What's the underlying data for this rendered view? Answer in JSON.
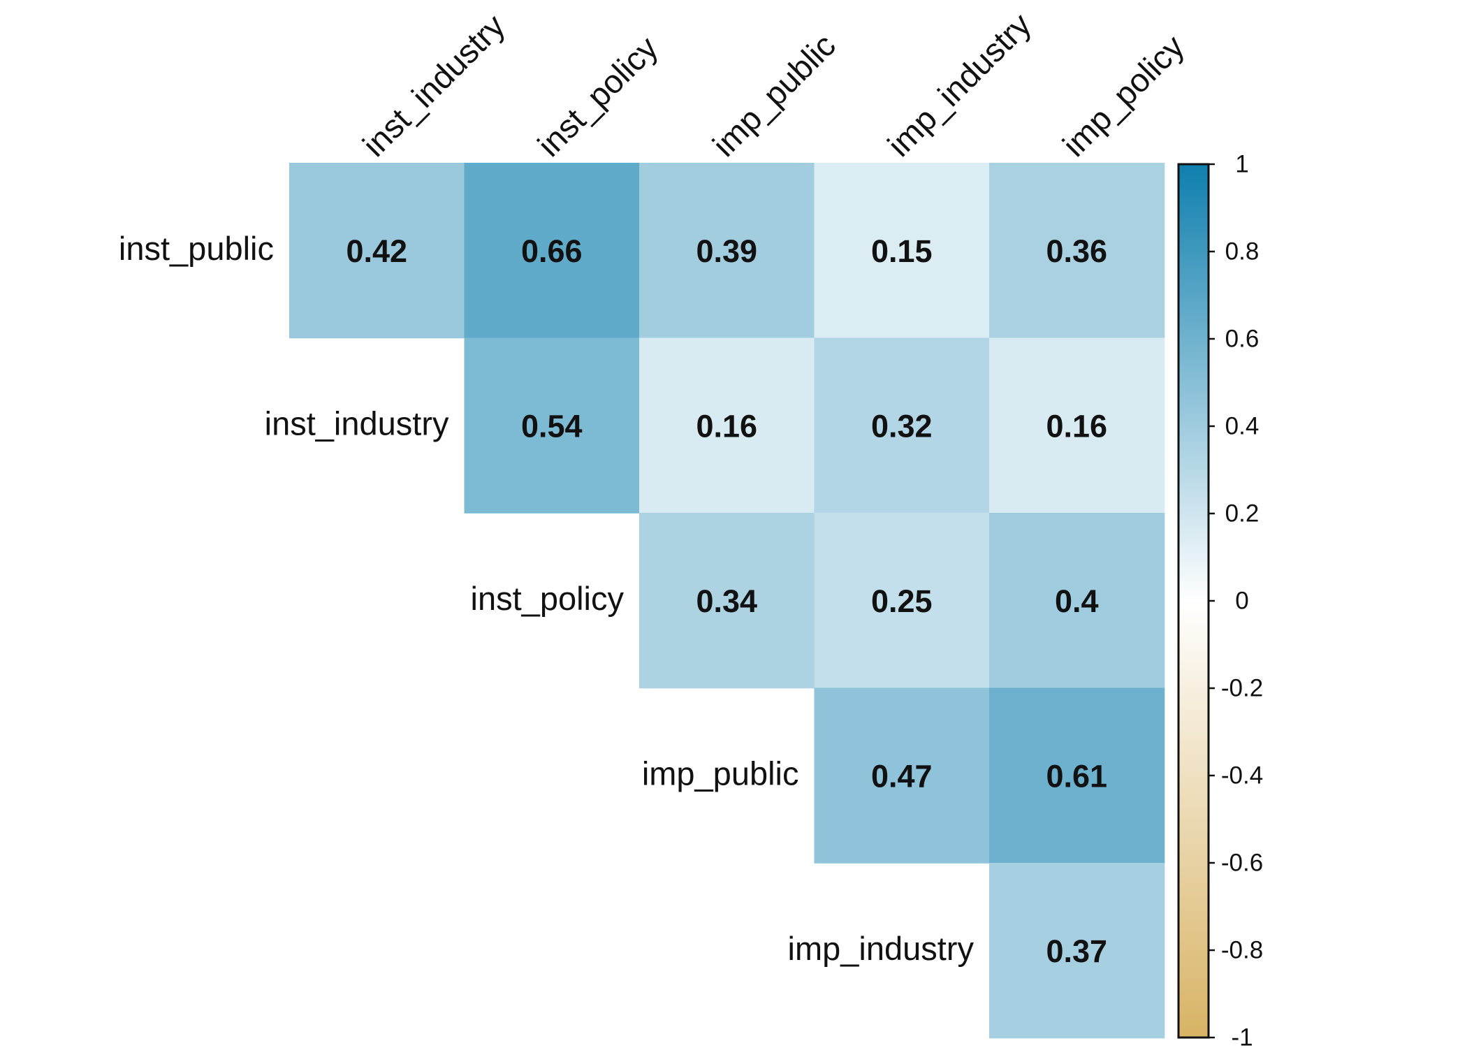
{
  "chart_data": {
    "type": "heatmap",
    "subtype": "correlation-matrix-upper-triangle",
    "row_labels": [
      "inst_public",
      "inst_industry",
      "inst_policy",
      "imp_public",
      "imp_industry"
    ],
    "col_labels": [
      "inst_industry",
      "inst_policy",
      "imp_public",
      "imp_industry",
      "imp_policy"
    ],
    "cells": [
      {
        "row": 0,
        "col": 0,
        "value": 0.42
      },
      {
        "row": 0,
        "col": 1,
        "value": 0.66
      },
      {
        "row": 0,
        "col": 2,
        "value": 0.39
      },
      {
        "row": 0,
        "col": 3,
        "value": 0.15
      },
      {
        "row": 0,
        "col": 4,
        "value": 0.36
      },
      {
        "row": 1,
        "col": 1,
        "value": 0.54
      },
      {
        "row": 1,
        "col": 2,
        "value": 0.16
      },
      {
        "row": 1,
        "col": 3,
        "value": 0.32
      },
      {
        "row": 1,
        "col": 4,
        "value": 0.16
      },
      {
        "row": 2,
        "col": 2,
        "value": 0.34
      },
      {
        "row": 2,
        "col": 3,
        "value": 0.25
      },
      {
        "row": 2,
        "col": 4,
        "value": 0.4
      },
      {
        "row": 3,
        "col": 3,
        "value": 0.47
      },
      {
        "row": 3,
        "col": 4,
        "value": 0.61
      },
      {
        "row": 4,
        "col": 4,
        "value": 0.37
      }
    ],
    "colorbar": {
      "range": [
        -1,
        1
      ],
      "ticks": [
        1,
        0.8,
        0.6,
        0.4,
        0.2,
        0,
        -0.2,
        -0.4,
        -0.6,
        -0.8,
        -1
      ],
      "tick_labels": [
        "1",
        "0.8",
        "0.6",
        "0.4",
        "0.2",
        "0",
        "-0.2",
        "-0.4",
        "-0.6",
        "-0.8",
        "-1"
      ],
      "color_low": "#D8B365",
      "color_mid": "#FFFFFF",
      "color_high": "#0F7FAE"
    },
    "title": "",
    "xlabel": "",
    "ylabel": ""
  }
}
